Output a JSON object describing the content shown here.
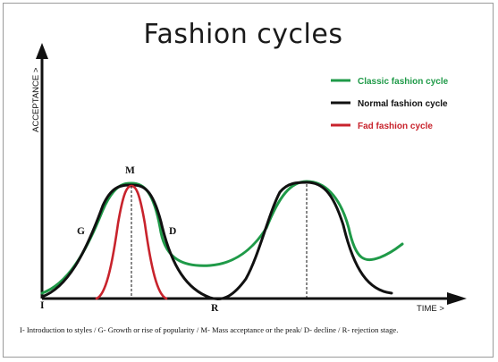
{
  "title": "Fashion cycles",
  "y_axis_label": "ACCEPTANCE >",
  "x_axis_label": "TIME >",
  "legend": [
    {
      "label": "Classic fashion cycle",
      "color": "#1f9a48"
    },
    {
      "label": "Normal fashion cycle",
      "color": "#111111"
    },
    {
      "label": "Fad fashion cycle",
      "color": "#c8232c"
    }
  ],
  "stage_labels": {
    "introduction": "I",
    "growth": "G",
    "mass_acceptance": "M",
    "decline": "D",
    "rejection": "R"
  },
  "caption": "I- Introduction to styles / G- Growth or rise of popularity / M- Mass acceptance or the peak/ D- decline / R- rejection stage."
}
